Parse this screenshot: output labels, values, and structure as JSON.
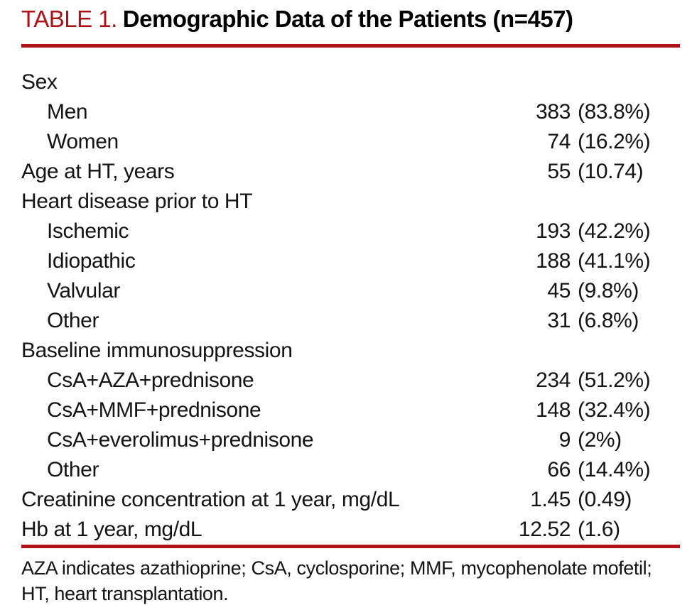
{
  "title": {
    "number": "TABLE 1.",
    "text": "Demographic Data of the Patients (n=457)"
  },
  "colors": {
    "accent_red": "#ae1116",
    "text": "#141414",
    "background": "#ffffff"
  },
  "table": {
    "rows": [
      {
        "label": "Sex"
      },
      {
        "label": "Men",
        "num": "383",
        "paren": "(83.8%)"
      },
      {
        "label": "Women",
        "num": "74",
        "paren": "(16.2%)"
      },
      {
        "label": "Age at HT, years",
        "num": "55",
        "paren": "(10.74)"
      },
      {
        "label": "Heart disease prior to HT"
      },
      {
        "label": "Ischemic",
        "num": "193",
        "paren": "(42.2%)"
      },
      {
        "label": "Idiopathic",
        "num": "188",
        "paren": "(41.1%)"
      },
      {
        "label": "Valvular",
        "num": "45",
        "paren": "(9.8%)"
      },
      {
        "label": "Other",
        "num": "31",
        "paren": "(6.8%)"
      },
      {
        "label": "Baseline immunosuppression"
      },
      {
        "label": "CsA+AZA+prednisone",
        "num": "234",
        "paren": "(51.2%)"
      },
      {
        "label": "CsA+MMF+prednisone",
        "num": "148",
        "paren": "(32.4%)"
      },
      {
        "label": "CsA+everolimus+prednisone",
        "num": "9",
        "paren": "(2%)"
      },
      {
        "label": "Other",
        "num": "66",
        "paren": "(14.4%)"
      },
      {
        "label": "Creatinine concentration at 1 year, mg/dL",
        "num": "1.45",
        "paren": "(0.49)"
      },
      {
        "label": "Hb at 1 year, mg/dL",
        "num": "12.52",
        "paren": "(1.6)"
      }
    ]
  },
  "footnote": {
    "line1": "AZA indicates azathioprine; CsA, cyclosporine; MMF, mycophenolate mofetil;",
    "line2": "HT, heart transplantation."
  }
}
